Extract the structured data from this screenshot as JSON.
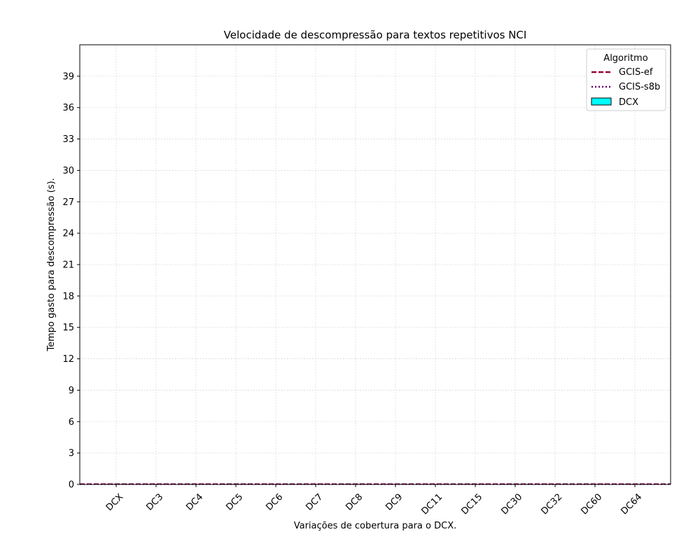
{
  "chart_data": {
    "type": "bar",
    "title": "Velocidade de descompressão para textos repetitivos NCI",
    "xlabel": "Variações de cobertura para o DCX.",
    "ylabel": "Tempo gasto para descompressão (s).",
    "categories": [
      "DCX",
      "DC3",
      "DC4",
      "DC5",
      "DC6",
      "DC7",
      "DC8",
      "DC9",
      "DC11",
      "DC15",
      "DC30",
      "DC32",
      "DC60",
      "DC64"
    ],
    "ylim": [
      0,
      42
    ],
    "yticks": [
      0,
      3,
      6,
      9,
      12,
      15,
      18,
      21,
      24,
      27,
      30,
      33,
      36,
      39
    ],
    "grid": true,
    "legend": {
      "title": "Algoritmo",
      "placement": "top-right",
      "entries": [
        {
          "label": "GCIS-ef",
          "style": "dashed",
          "color": "#990033"
        },
        {
          "label": "GCIS-s8b",
          "style": "dotted",
          "color": "#660066"
        },
        {
          "label": "DCX",
          "style": "bar",
          "color": "#00ffff"
        }
      ]
    },
    "series": [
      {
        "name": "DCX",
        "type": "bar",
        "color": "#00ffff",
        "values": [
          0.02,
          0.02,
          0.02,
          0.02,
          0.02,
          0.02,
          0.02,
          0.02,
          0.02,
          0.02,
          0.02,
          0.02,
          0.02,
          0.02
        ]
      },
      {
        "name": "GCIS-ef",
        "type": "hline",
        "color": "#990033",
        "value": 0.03
      },
      {
        "name": "GCIS-s8b",
        "type": "hline",
        "color": "#660066",
        "value": 0.02
      }
    ]
  }
}
